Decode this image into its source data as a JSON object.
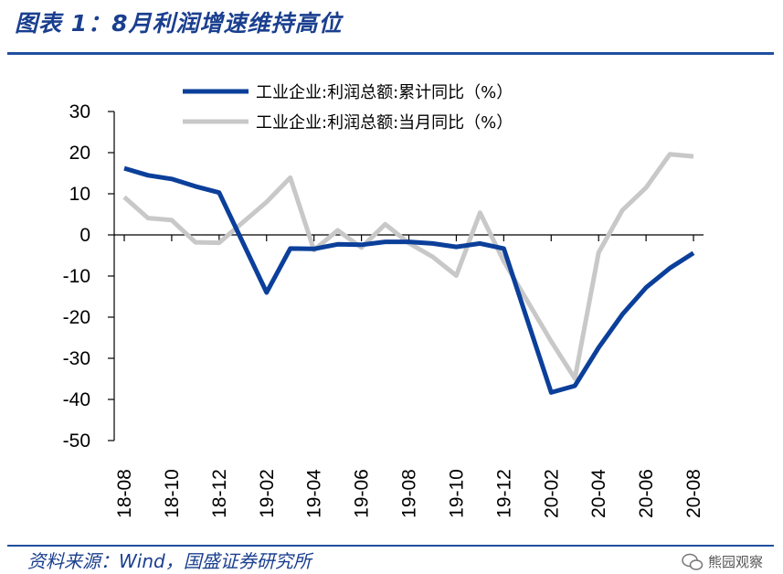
{
  "header": {
    "title": "图表 1：8月利润增速维持高位"
  },
  "footer": {
    "source": "资料来源：Wind，国盛证券研究所",
    "watermark": "熊园观察"
  },
  "chart_data": {
    "type": "line",
    "categories": [
      "18-08",
      "18-09",
      "18-10",
      "18-11",
      "18-12",
      "19-01",
      "19-02",
      "19-03",
      "19-04",
      "19-05",
      "19-06",
      "19-07",
      "19-08",
      "19-09",
      "19-10",
      "19-11",
      "19-12",
      "20-01",
      "20-02",
      "20-03",
      "20-04",
      "20-05",
      "20-06",
      "20-07",
      "20-08"
    ],
    "tick_labels": [
      "18-08",
      "18-10",
      "18-12",
      "19-02",
      "19-04",
      "19-06",
      "19-08",
      "19-10",
      "19-12",
      "20-02",
      "20-04",
      "20-06",
      "20-08"
    ],
    "ylim": [
      -50,
      30
    ],
    "yticks": [
      30,
      20,
      10,
      0,
      -10,
      -20,
      -30,
      -40,
      -50
    ],
    "legend_position": "top",
    "series": [
      {
        "name": "工业企业:利润总额:累计同比（%）",
        "color": "#0b3f9a",
        "values": [
          16.2,
          14.5,
          13.6,
          11.8,
          10.3,
          null,
          -14.0,
          -3.3,
          -3.4,
          -2.3,
          -2.4,
          -1.7,
          -1.7,
          -2.1,
          -2.9,
          -2.1,
          -3.3,
          null,
          -38.3,
          -36.7,
          -27.4,
          -19.3,
          -12.8,
          -8.1,
          -4.4
        ]
      },
      {
        "name": "工业企业:利润总额:当月同比（%）",
        "color": "#c8c8c8",
        "values": [
          9.2,
          4.1,
          3.6,
          -1.8,
          -1.9,
          null,
          8.0,
          13.9,
          -3.7,
          1.1,
          -3.1,
          2.6,
          -2.0,
          -5.3,
          -9.9,
          5.4,
          -6.4,
          null,
          -25.9,
          -34.9,
          -4.3,
          6.0,
          11.5,
          19.6,
          19.1
        ]
      }
    ]
  }
}
